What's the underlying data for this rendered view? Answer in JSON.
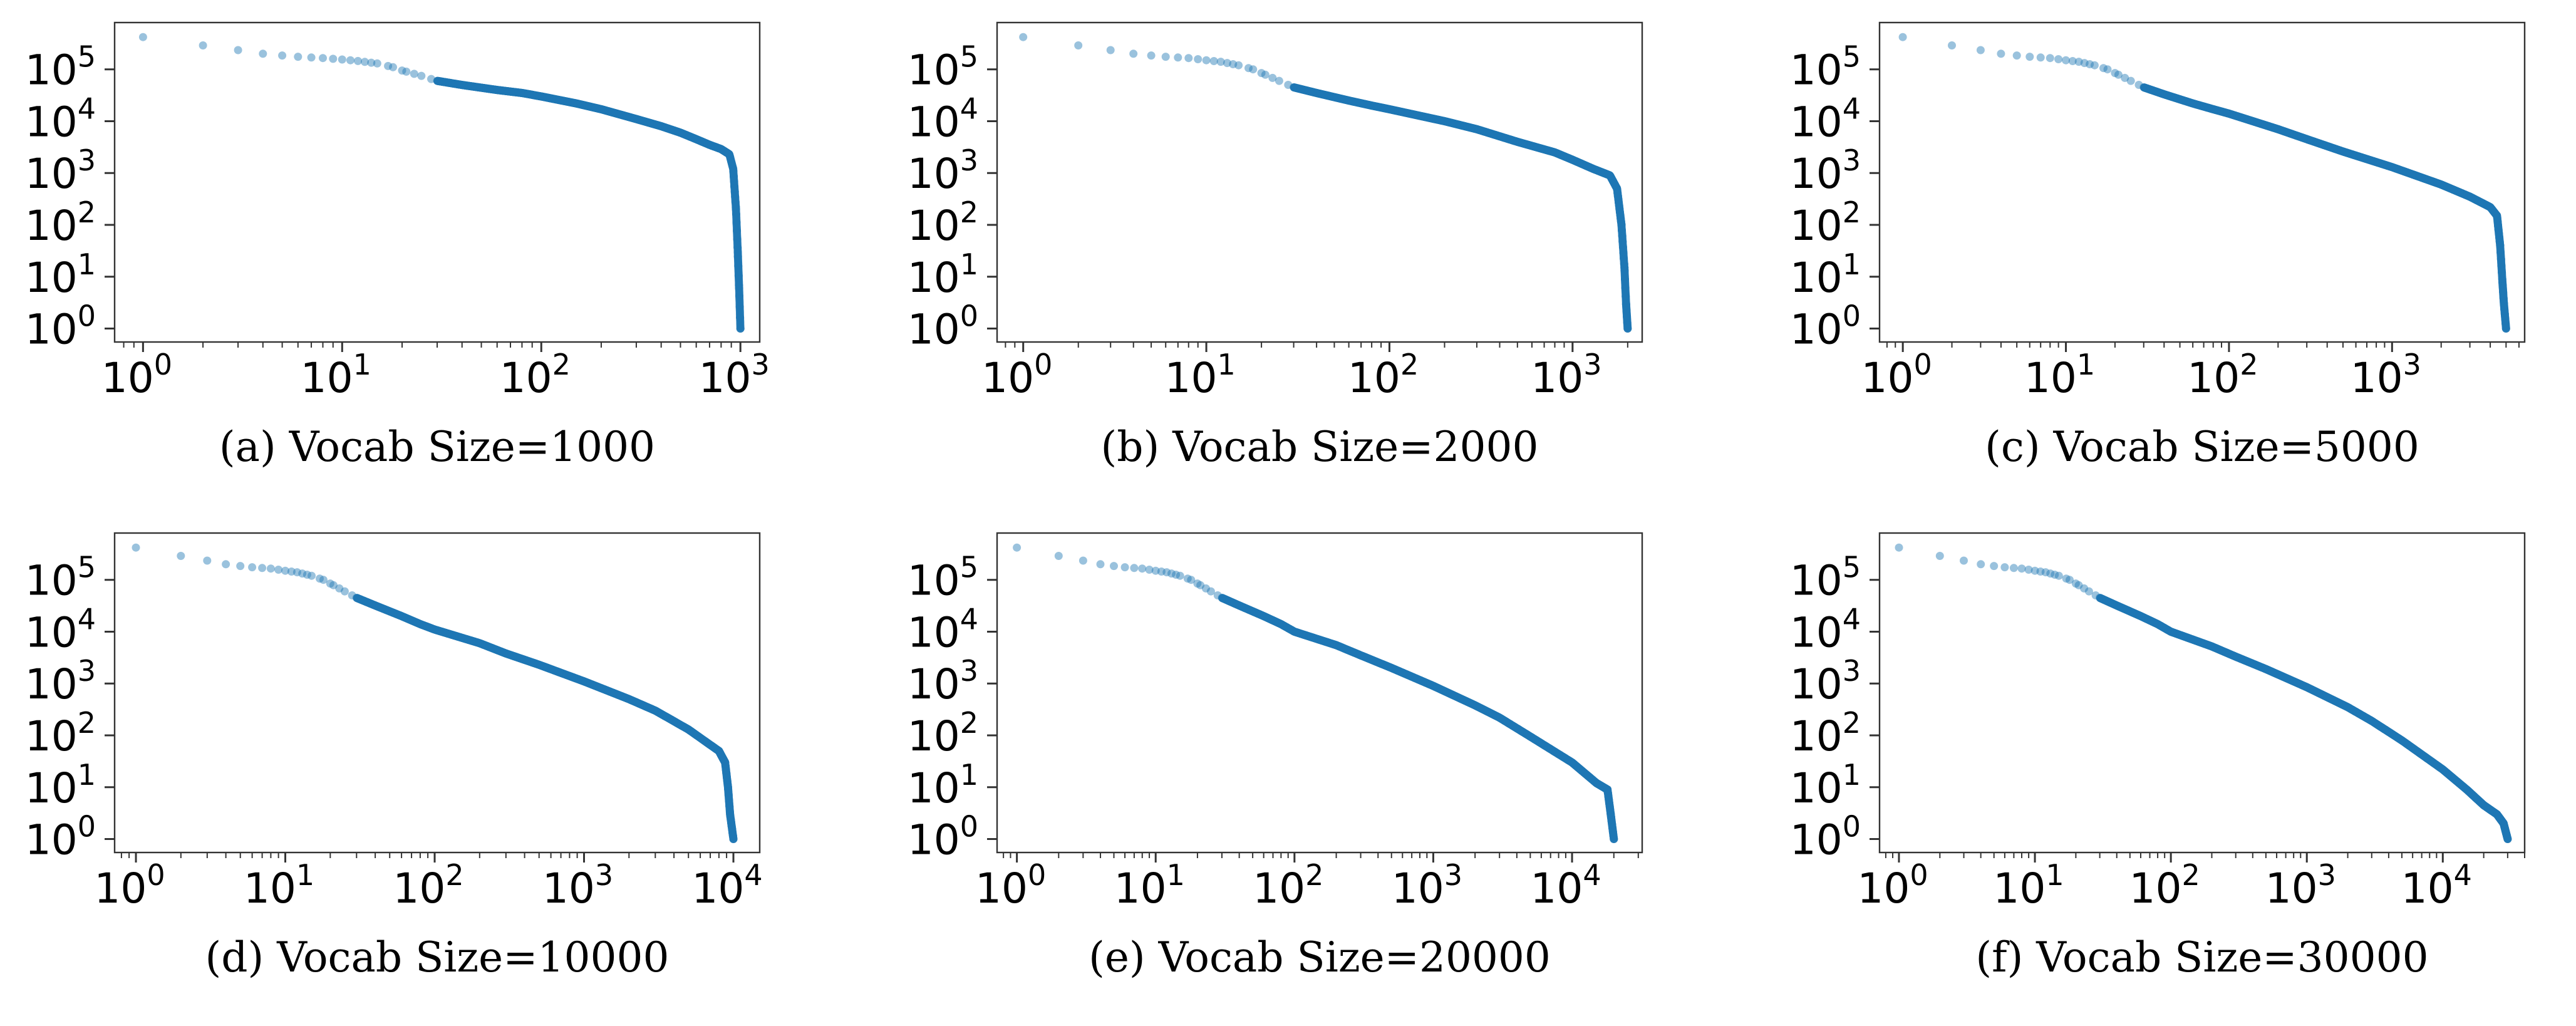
{
  "chart_data": [
    {
      "type": "scatter",
      "caption": "(a) Vocab Size=1000",
      "xscale": "log",
      "yscale": "log",
      "xlim": [
        0.72,
        1250
      ],
      "ylim": [
        0.55,
        800000
      ],
      "xticks": [
        {
          "base": "10",
          "exp": "0",
          "value": 1
        },
        {
          "base": "10",
          "exp": "1",
          "value": 10
        },
        {
          "base": "10",
          "exp": "2",
          "value": 100
        },
        {
          "base": "10",
          "exp": "3",
          "value": 1000
        }
      ],
      "yticks": [
        {
          "base": "10",
          "exp": "0",
          "value": 1
        },
        {
          "base": "10",
          "exp": "1",
          "value": 10
        },
        {
          "base": "10",
          "exp": "2",
          "value": 100
        },
        {
          "base": "10",
          "exp": "3",
          "value": 1000
        },
        {
          "base": "10",
          "exp": "4",
          "value": 10000
        },
        {
          "base": "10",
          "exp": "5",
          "value": 100000
        }
      ],
      "color": "#1f77b4",
      "grid": false,
      "legend": "none",
      "points": [
        [
          1,
          420000
        ],
        [
          2,
          290000
        ],
        [
          3,
          235000
        ],
        [
          4,
          200000
        ],
        [
          5,
          185000
        ],
        [
          6,
          175000
        ],
        [
          8,
          165000
        ],
        [
          10,
          155000
        ],
        [
          12,
          145000
        ],
        [
          15,
          130000
        ],
        [
          18,
          110000
        ],
        [
          20,
          95000
        ],
        [
          25,
          75000
        ],
        [
          30,
          60000
        ],
        [
          40,
          50000
        ],
        [
          60,
          40000
        ],
        [
          80,
          35000
        ],
        [
          100,
          30000
        ],
        [
          150,
          22000
        ],
        [
          200,
          17000
        ],
        [
          300,
          11000
        ],
        [
          400,
          8000
        ],
        [
          500,
          6000
        ],
        [
          600,
          4500
        ],
        [
          700,
          3500
        ],
        [
          800,
          2900
        ],
        [
          880,
          2300
        ],
        [
          920,
          1200
        ],
        [
          950,
          200
        ],
        [
          970,
          30
        ],
        [
          985,
          6
        ],
        [
          1000,
          1
        ]
      ]
    },
    {
      "type": "scatter",
      "caption": "(b) Vocab Size=2000",
      "xscale": "log",
      "yscale": "log",
      "xlim": [
        0.72,
        2400
      ],
      "ylim": [
        0.55,
        800000
      ],
      "xticks": [
        {
          "base": "10",
          "exp": "0",
          "value": 1
        },
        {
          "base": "10",
          "exp": "1",
          "value": 10
        },
        {
          "base": "10",
          "exp": "2",
          "value": 100
        },
        {
          "base": "10",
          "exp": "3",
          "value": 1000
        }
      ],
      "yticks": [
        {
          "base": "10",
          "exp": "0",
          "value": 1
        },
        {
          "base": "10",
          "exp": "1",
          "value": 10
        },
        {
          "base": "10",
          "exp": "2",
          "value": 100
        },
        {
          "base": "10",
          "exp": "3",
          "value": 1000
        },
        {
          "base": "10",
          "exp": "4",
          "value": 10000
        },
        {
          "base": "10",
          "exp": "5",
          "value": 100000
        }
      ],
      "color": "#1f77b4",
      "grid": false,
      "legend": "none",
      "points": [
        [
          1,
          420000
        ],
        [
          2,
          290000
        ],
        [
          3,
          235000
        ],
        [
          4,
          200000
        ],
        [
          5,
          185000
        ],
        [
          6,
          175000
        ],
        [
          8,
          165000
        ],
        [
          10,
          150000
        ],
        [
          12,
          140000
        ],
        [
          15,
          120000
        ],
        [
          18,
          100000
        ],
        [
          20,
          85000
        ],
        [
          25,
          60000
        ],
        [
          30,
          45000
        ],
        [
          40,
          35000
        ],
        [
          60,
          25000
        ],
        [
          80,
          20000
        ],
        [
          100,
          17000
        ],
        [
          200,
          10000
        ],
        [
          300,
          7000
        ],
        [
          500,
          4000
        ],
        [
          800,
          2500
        ],
        [
          1000,
          1800
        ],
        [
          1300,
          1200
        ],
        [
          1600,
          900
        ],
        [
          1750,
          500
        ],
        [
          1850,
          100
        ],
        [
          1920,
          15
        ],
        [
          1960,
          3
        ],
        [
          2000,
          1
        ]
      ]
    },
    {
      "type": "scatter",
      "caption": "(c) Vocab Size=5000",
      "xscale": "log",
      "yscale": "log",
      "xlim": [
        0.72,
        6500
      ],
      "ylim": [
        0.55,
        800000
      ],
      "xticks": [
        {
          "base": "10",
          "exp": "0",
          "value": 1
        },
        {
          "base": "10",
          "exp": "1",
          "value": 10
        },
        {
          "base": "10",
          "exp": "2",
          "value": 100
        },
        {
          "base": "10",
          "exp": "3",
          "value": 1000
        }
      ],
      "yticks": [
        {
          "base": "10",
          "exp": "0",
          "value": 1
        },
        {
          "base": "10",
          "exp": "1",
          "value": 10
        },
        {
          "base": "10",
          "exp": "2",
          "value": 100
        },
        {
          "base": "10",
          "exp": "3",
          "value": 1000
        },
        {
          "base": "10",
          "exp": "4",
          "value": 10000
        },
        {
          "base": "10",
          "exp": "5",
          "value": 100000
        }
      ],
      "color": "#1f77b4",
      "grid": false,
      "legend": "none",
      "points": [
        [
          1,
          420000
        ],
        [
          2,
          290000
        ],
        [
          3,
          235000
        ],
        [
          4,
          200000
        ],
        [
          5,
          185000
        ],
        [
          6,
          175000
        ],
        [
          8,
          165000
        ],
        [
          10,
          150000
        ],
        [
          12,
          140000
        ],
        [
          15,
          120000
        ],
        [
          18,
          100000
        ],
        [
          20,
          85000
        ],
        [
          25,
          60000
        ],
        [
          30,
          45000
        ],
        [
          40,
          33000
        ],
        [
          60,
          22000
        ],
        [
          80,
          17000
        ],
        [
          100,
          14000
        ],
        [
          200,
          7000
        ],
        [
          300,
          4500
        ],
        [
          500,
          2600
        ],
        [
          1000,
          1300
        ],
        [
          2000,
          600
        ],
        [
          3000,
          350
        ],
        [
          4000,
          220
        ],
        [
          4400,
          150
        ],
        [
          4600,
          40
        ],
        [
          4750,
          8
        ],
        [
          4850,
          3
        ],
        [
          5000,
          1
        ]
      ]
    },
    {
      "type": "scatter",
      "caption": "(d) Vocab Size=10000",
      "xscale": "log",
      "yscale": "log",
      "xlim": [
        0.72,
        15000
      ],
      "ylim": [
        0.55,
        800000
      ],
      "xticks": [
        {
          "base": "10",
          "exp": "0",
          "value": 1
        },
        {
          "base": "10",
          "exp": "1",
          "value": 10
        },
        {
          "base": "10",
          "exp": "2",
          "value": 100
        },
        {
          "base": "10",
          "exp": "3",
          "value": 1000
        },
        {
          "base": "10",
          "exp": "4",
          "value": 10000
        }
      ],
      "yticks": [
        {
          "base": "10",
          "exp": "0",
          "value": 1
        },
        {
          "base": "10",
          "exp": "1",
          "value": 10
        },
        {
          "base": "10",
          "exp": "2",
          "value": 100
        },
        {
          "base": "10",
          "exp": "3",
          "value": 1000
        },
        {
          "base": "10",
          "exp": "4",
          "value": 10000
        },
        {
          "base": "10",
          "exp": "5",
          "value": 100000
        }
      ],
      "color": "#1f77b4",
      "grid": false,
      "legend": "none",
      "points": [
        [
          1,
          420000
        ],
        [
          2,
          290000
        ],
        [
          3,
          235000
        ],
        [
          4,
          200000
        ],
        [
          5,
          185000
        ],
        [
          6,
          175000
        ],
        [
          8,
          165000
        ],
        [
          10,
          150000
        ],
        [
          12,
          140000
        ],
        [
          15,
          120000
        ],
        [
          18,
          100000
        ],
        [
          20,
          85000
        ],
        [
          25,
          60000
        ],
        [
          30,
          45000
        ],
        [
          40,
          32000
        ],
        [
          60,
          20000
        ],
        [
          80,
          14000
        ],
        [
          100,
          11000
        ],
        [
          200,
          6000
        ],
        [
          300,
          3800
        ],
        [
          500,
          2300
        ],
        [
          1000,
          1100
        ],
        [
          2000,
          500
        ],
        [
          3000,
          300
        ],
        [
          5000,
          130
        ],
        [
          8000,
          50
        ],
        [
          8800,
          30
        ],
        [
          9200,
          10
        ],
        [
          9500,
          3
        ],
        [
          10000,
          1
        ]
      ]
    },
    {
      "type": "scatter",
      "caption": "(e) Vocab Size=20000",
      "xscale": "log",
      "yscale": "log",
      "xlim": [
        0.72,
        32000
      ],
      "ylim": [
        0.55,
        800000
      ],
      "xticks": [
        {
          "base": "10",
          "exp": "0",
          "value": 1
        },
        {
          "base": "10",
          "exp": "1",
          "value": 10
        },
        {
          "base": "10",
          "exp": "2",
          "value": 100
        },
        {
          "base": "10",
          "exp": "3",
          "value": 1000
        },
        {
          "base": "10",
          "exp": "4",
          "value": 10000
        }
      ],
      "yticks": [
        {
          "base": "10",
          "exp": "0",
          "value": 1
        },
        {
          "base": "10",
          "exp": "1",
          "value": 10
        },
        {
          "base": "10",
          "exp": "2",
          "value": 100
        },
        {
          "base": "10",
          "exp": "3",
          "value": 1000
        },
        {
          "base": "10",
          "exp": "4",
          "value": 10000
        },
        {
          "base": "10",
          "exp": "5",
          "value": 100000
        }
      ],
      "color": "#1f77b4",
      "grid": false,
      "legend": "none",
      "points": [
        [
          1,
          420000
        ],
        [
          2,
          290000
        ],
        [
          3,
          235000
        ],
        [
          4,
          200000
        ],
        [
          5,
          185000
        ],
        [
          6,
          175000
        ],
        [
          8,
          165000
        ],
        [
          10,
          150000
        ],
        [
          12,
          140000
        ],
        [
          15,
          120000
        ],
        [
          18,
          100000
        ],
        [
          20,
          85000
        ],
        [
          25,
          60000
        ],
        [
          30,
          45000
        ],
        [
          40,
          32000
        ],
        [
          60,
          20000
        ],
        [
          80,
          14000
        ],
        [
          100,
          10000
        ],
        [
          200,
          5500
        ],
        [
          300,
          3500
        ],
        [
          500,
          2000
        ],
        [
          1000,
          900
        ],
        [
          2000,
          380
        ],
        [
          3000,
          220
        ],
        [
          5000,
          95
        ],
        [
          10000,
          30
        ],
        [
          15000,
          12
        ],
        [
          18000,
          9
        ],
        [
          19000,
          3
        ],
        [
          20000,
          1
        ]
      ]
    },
    {
      "type": "scatter",
      "caption": "(f) Vocab Size=30000",
      "xscale": "log",
      "yscale": "log",
      "xlim": [
        0.72,
        40000
      ],
      "ylim": [
        0.55,
        800000
      ],
      "xticks": [
        {
          "base": "10",
          "exp": "0",
          "value": 1
        },
        {
          "base": "10",
          "exp": "1",
          "value": 10
        },
        {
          "base": "10",
          "exp": "2",
          "value": 100
        },
        {
          "base": "10",
          "exp": "3",
          "value": 1000
        },
        {
          "base": "10",
          "exp": "4",
          "value": 10000
        }
      ],
      "yticks": [
        {
          "base": "10",
          "exp": "0",
          "value": 1
        },
        {
          "base": "10",
          "exp": "1",
          "value": 10
        },
        {
          "base": "10",
          "exp": "2",
          "value": 100
        },
        {
          "base": "10",
          "exp": "3",
          "value": 1000
        },
        {
          "base": "10",
          "exp": "4",
          "value": 10000
        },
        {
          "base": "10",
          "exp": "5",
          "value": 100000
        }
      ],
      "color": "#1f77b4",
      "grid": false,
      "legend": "none",
      "points": [
        [
          1,
          420000
        ],
        [
          2,
          290000
        ],
        [
          3,
          235000
        ],
        [
          4,
          200000
        ],
        [
          5,
          185000
        ],
        [
          6,
          175000
        ],
        [
          8,
          165000
        ],
        [
          10,
          150000
        ],
        [
          12,
          140000
        ],
        [
          15,
          120000
        ],
        [
          18,
          100000
        ],
        [
          20,
          85000
        ],
        [
          25,
          60000
        ],
        [
          30,
          45000
        ],
        [
          40,
          32000
        ],
        [
          60,
          20000
        ],
        [
          80,
          14000
        ],
        [
          100,
          10000
        ],
        [
          200,
          5200
        ],
        [
          300,
          3300
        ],
        [
          500,
          1900
        ],
        [
          1000,
          850
        ],
        [
          2000,
          350
        ],
        [
          3000,
          190
        ],
        [
          5000,
          80
        ],
        [
          10000,
          22
        ],
        [
          15000,
          9
        ],
        [
          20000,
          4.5
        ],
        [
          25000,
          3
        ],
        [
          28000,
          2
        ],
        [
          30000,
          1
        ]
      ]
    }
  ]
}
